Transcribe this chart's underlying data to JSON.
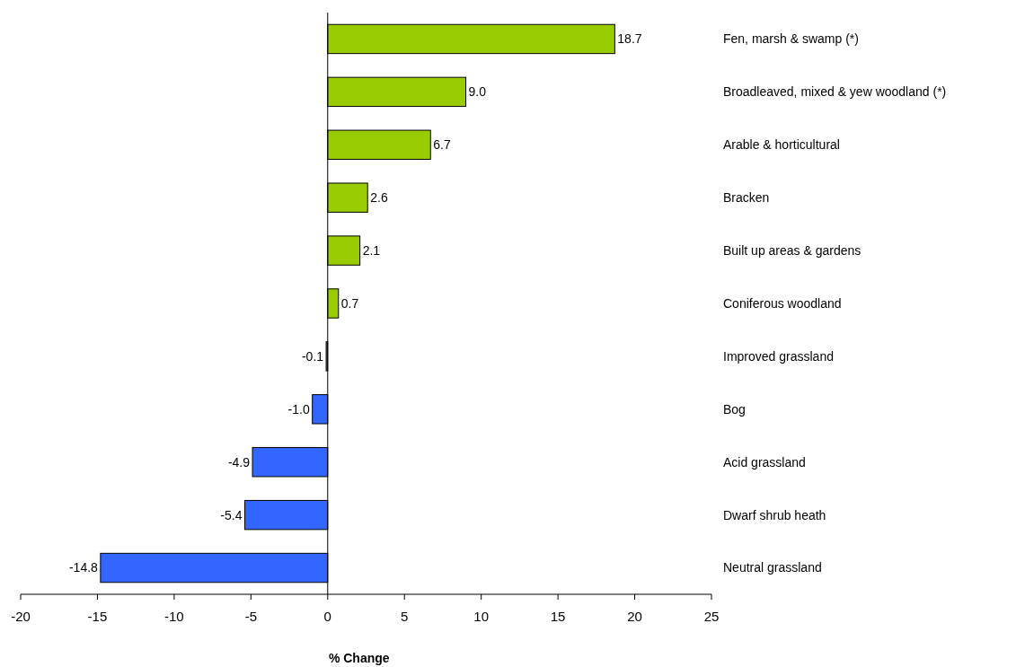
{
  "chart_data": {
    "type": "bar",
    "orientation": "horizontal",
    "xlabel": "% Change",
    "categories": [
      "Fen, marsh & swamp (*)",
      "Broadleaved, mixed & yew woodland (*)",
      "Arable & horticultural",
      "Bracken",
      "Built up areas & gardens",
      "Coniferous woodland",
      "Improved grassland",
      "Bog",
      "Acid grassland",
      "Dwarf shrub heath",
      "Neutral grassland"
    ],
    "values": [
      18.7,
      9.0,
      6.7,
      2.6,
      2.1,
      0.7,
      -0.1,
      -1.0,
      -4.9,
      -5.4,
      -14.8
    ],
    "value_labels": [
      "18.7",
      "9.0",
      "6.7",
      "2.6",
      "2.1",
      "0.7",
      "-0.1",
      "-1.0",
      "-4.9",
      "-5.4",
      "-14.8"
    ],
    "colors": [
      "#99cc00",
      "#99cc00",
      "#99cc00",
      "#99cc00",
      "#99cc00",
      "#99cc00",
      "#3366ff",
      "#3366ff",
      "#3366ff",
      "#3366ff",
      "#3366ff"
    ],
    "xlim": [
      -20,
      25
    ],
    "xticks": [
      -20,
      -15,
      -10,
      -5,
      0,
      5,
      10,
      15,
      20,
      25
    ]
  }
}
